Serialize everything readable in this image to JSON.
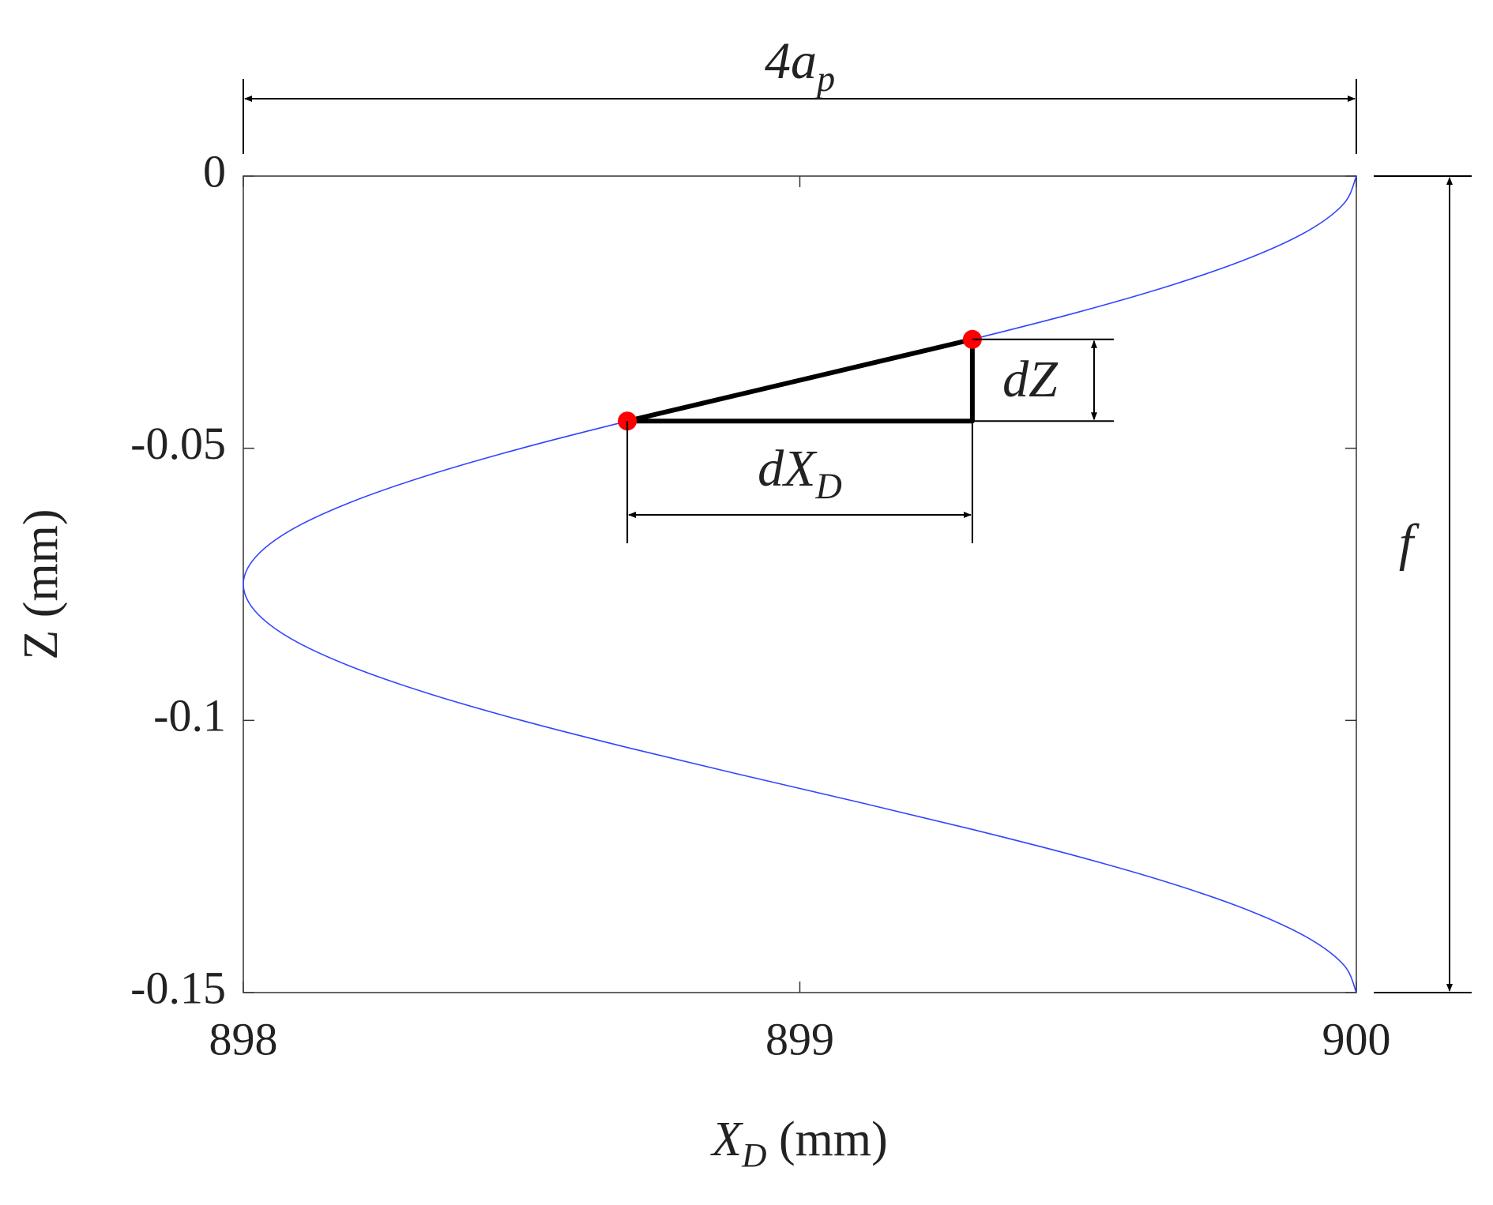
{
  "chart_data": {
    "type": "line",
    "x_label": {
      "main": "X",
      "subscript": "D",
      "suffix": " (mm)"
    },
    "y_label": "Z (mm)",
    "xlim": [
      898,
      900
    ],
    "xticks": [
      898,
      899,
      900
    ],
    "ylim": [
      -0.15,
      0
    ],
    "yticks": [
      -0.15,
      -0.1,
      -0.05,
      0
    ],
    "x": [
      900,
      899.978,
      899.914,
      899.809,
      899.669,
      899.5,
      899.309,
      899.105,
      898.895,
      898.691,
      898.5,
      898.331,
      898.191,
      898.086,
      898.022,
      898,
      898.022,
      898.086,
      898.191,
      898.331,
      898.5,
      898.691,
      898.895,
      899.105,
      899.309,
      899.5,
      899.669,
      899.809,
      899.914,
      899.978,
      900
    ],
    "series": [
      {
        "color": "#3344ff",
        "values": [
          0,
          -0.005,
          -0.01,
          -0.015,
          -0.02,
          -0.025,
          -0.03,
          -0.035,
          -0.04,
          -0.045,
          -0.05,
          -0.055,
          -0.06,
          -0.065,
          -0.07,
          -0.075,
          -0.08,
          -0.085,
          -0.09,
          -0.095,
          -0.1,
          -0.105,
          -0.11,
          -0.115,
          -0.12,
          -0.125,
          -0.13,
          -0.135,
          -0.14,
          -0.145,
          -0.15
        ]
      }
    ],
    "points": {
      "color": "#ff0000",
      "x": [
        898.69,
        899.31
      ],
      "y": [
        -0.045,
        -0.03
      ]
    },
    "annotations": {
      "width": {
        "main": "4a",
        "subscript": "p"
      },
      "height": {
        "main": "f"
      },
      "dz": {
        "main": "dZ"
      },
      "dx": {
        "main": "dX",
        "subscript": "D"
      }
    }
  }
}
